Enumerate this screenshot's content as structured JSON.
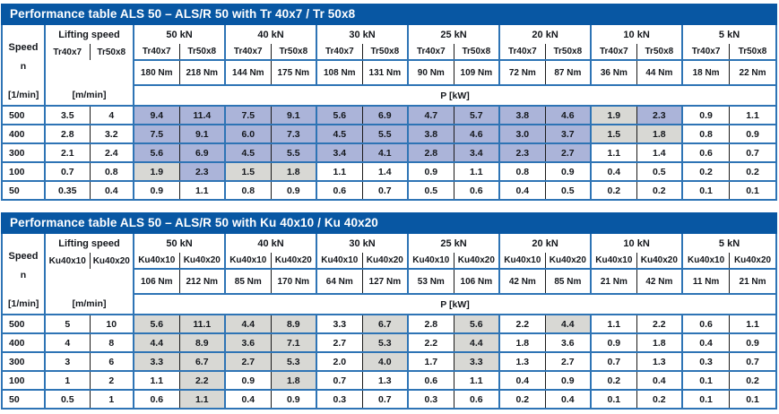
{
  "colors": {
    "title_bar": "#0857a3",
    "border_blue": "#2e74b5",
    "cell_blue": "#abb4d9",
    "cell_gray": "#d8d8d4",
    "text": "#14171c",
    "title_text": "#ffffff"
  },
  "tables": [
    {
      "title": "Performance table ALS 50 – ALS/R 50 with Tr 40x7 / Tr 50x8",
      "speed_header": "Speed",
      "speed_sub": "n",
      "speed_unit": "[1/min]",
      "lifting_header": "Lifting speed",
      "lifting_unit": "[m/min]",
      "power_unit": "P [kW]",
      "screw_labels": [
        "Tr40x7",
        "Tr50x8"
      ],
      "load_groups": [
        {
          "label": "50 kN",
          "torques": [
            "180 Nm",
            "218 Nm"
          ]
        },
        {
          "label": "40 kN",
          "torques": [
            "144 Nm",
            "175 Nm"
          ]
        },
        {
          "label": "30 kN",
          "torques": [
            "108 Nm",
            "131 Nm"
          ]
        },
        {
          "label": "25 kN",
          "torques": [
            "90 Nm",
            "109 Nm"
          ]
        },
        {
          "label": "20 kN",
          "torques": [
            "72 Nm",
            "87 Nm"
          ]
        },
        {
          "label": "10 kN",
          "torques": [
            "36 Nm",
            "44 Nm"
          ]
        },
        {
          "label": "5 kN",
          "torques": [
            "18 Nm",
            "22 Nm"
          ]
        }
      ],
      "rows": [
        {
          "speed": "500",
          "lifting": [
            "3.5",
            "4"
          ],
          "values": [
            [
              "9.4",
              "11.4"
            ],
            [
              "7.5",
              "9.1"
            ],
            [
              "5.6",
              "6.9"
            ],
            [
              "4.7",
              "5.7"
            ],
            [
              "3.8",
              "4.6"
            ],
            [
              "1.9",
              "2.3"
            ],
            [
              "0.9",
              "1.1"
            ]
          ],
          "shading": [
            [
              "blue",
              "blue"
            ],
            [
              "blue",
              "blue"
            ],
            [
              "blue",
              "blue"
            ],
            [
              "blue",
              "blue"
            ],
            [
              "blue",
              "blue"
            ],
            [
              "gray",
              "blue"
            ],
            [
              "",
              ""
            ]
          ]
        },
        {
          "speed": "400",
          "lifting": [
            "2.8",
            "3.2"
          ],
          "values": [
            [
              "7.5",
              "9.1"
            ],
            [
              "6.0",
              "7.3"
            ],
            [
              "4.5",
              "5.5"
            ],
            [
              "3.8",
              "4.6"
            ],
            [
              "3.0",
              "3.7"
            ],
            [
              "1.5",
              "1.8"
            ],
            [
              "0.8",
              "0.9"
            ]
          ],
          "shading": [
            [
              "blue",
              "blue"
            ],
            [
              "blue",
              "blue"
            ],
            [
              "blue",
              "blue"
            ],
            [
              "blue",
              "blue"
            ],
            [
              "blue",
              "blue"
            ],
            [
              "gray",
              "gray"
            ],
            [
              "",
              ""
            ]
          ]
        },
        {
          "speed": "300",
          "lifting": [
            "2.1",
            "2.4"
          ],
          "values": [
            [
              "5.6",
              "6.9"
            ],
            [
              "4.5",
              "5.5"
            ],
            [
              "3.4",
              "4.1"
            ],
            [
              "2.8",
              "3.4"
            ],
            [
              "2.3",
              "2.7"
            ],
            [
              "1.1",
              "1.4"
            ],
            [
              "0.6",
              "0.7"
            ]
          ],
          "shading": [
            [
              "blue",
              "blue"
            ],
            [
              "blue",
              "blue"
            ],
            [
              "blue",
              "blue"
            ],
            [
              "blue",
              "blue"
            ],
            [
              "blue",
              "blue"
            ],
            [
              "",
              ""
            ],
            [
              "",
              ""
            ]
          ]
        },
        {
          "speed": "100",
          "lifting": [
            "0.7",
            "0.8"
          ],
          "values": [
            [
              "1.9",
              "2.3"
            ],
            [
              "1.5",
              "1.8"
            ],
            [
              "1.1",
              "1.4"
            ],
            [
              "0.9",
              "1.1"
            ],
            [
              "0.8",
              "0.9"
            ],
            [
              "0.4",
              "0.5"
            ],
            [
              "0.2",
              "0.2"
            ]
          ],
          "shading": [
            [
              "gray",
              "blue"
            ],
            [
              "gray",
              "gray"
            ],
            [
              "",
              ""
            ],
            [
              "",
              ""
            ],
            [
              "",
              ""
            ],
            [
              "",
              ""
            ],
            [
              "",
              ""
            ]
          ]
        },
        {
          "speed": "50",
          "lifting": [
            "0.35",
            "0.4"
          ],
          "values": [
            [
              "0.9",
              "1.1"
            ],
            [
              "0.8",
              "0.9"
            ],
            [
              "0.6",
              "0.7"
            ],
            [
              "0.5",
              "0.6"
            ],
            [
              "0.4",
              "0.5"
            ],
            [
              "0.2",
              "0.2"
            ],
            [
              "0.1",
              "0.1"
            ]
          ],
          "shading": [
            [
              "",
              ""
            ],
            [
              "",
              ""
            ],
            [
              "",
              ""
            ],
            [
              "",
              ""
            ],
            [
              "",
              ""
            ],
            [
              "",
              ""
            ],
            [
              "",
              ""
            ]
          ]
        }
      ]
    },
    {
      "title": "Performance table ALS 50 – ALS/R 50 with Ku 40x10 / Ku 40x20",
      "speed_header": "Speed",
      "speed_sub": "n",
      "speed_unit": "[1/min]",
      "lifting_header": "Lifting speed",
      "lifting_unit": "[m/min]",
      "power_unit": "P [kW]",
      "screw_labels": [
        "Ku40x10",
        "Ku40x20"
      ],
      "load_groups": [
        {
          "label": "50 kN",
          "torques": [
            "106 Nm",
            "212 Nm"
          ]
        },
        {
          "label": "40 kN",
          "torques": [
            "85 Nm",
            "170 Nm"
          ]
        },
        {
          "label": "30 kN",
          "torques": [
            "64 Nm",
            "127 Nm"
          ]
        },
        {
          "label": "25 kN",
          "torques": [
            "53 Nm",
            "106 Nm"
          ]
        },
        {
          "label": "20 kN",
          "torques": [
            "42 Nm",
            "85 Nm"
          ]
        },
        {
          "label": "10 kN",
          "torques": [
            "21 Nm",
            "42 Nm"
          ]
        },
        {
          "label": "5 kN",
          "torques": [
            "11 Nm",
            "21 Nm"
          ]
        }
      ],
      "rows": [
        {
          "speed": "500",
          "lifting": [
            "5",
            "10"
          ],
          "values": [
            [
              "5.6",
              "11.1"
            ],
            [
              "4.4",
              "8.9"
            ],
            [
              "3.3",
              "6.7"
            ],
            [
              "2.8",
              "5.6"
            ],
            [
              "2.2",
              "4.4"
            ],
            [
              "1.1",
              "2.2"
            ],
            [
              "0.6",
              "1.1"
            ]
          ],
          "shading": [
            [
              "gray",
              "gray"
            ],
            [
              "gray",
              "gray"
            ],
            [
              "",
              "gray"
            ],
            [
              "",
              "gray"
            ],
            [
              "",
              "gray"
            ],
            [
              "",
              ""
            ],
            [
              "",
              ""
            ]
          ]
        },
        {
          "speed": "400",
          "lifting": [
            "4",
            "8"
          ],
          "values": [
            [
              "4.4",
              "8.9"
            ],
            [
              "3.6",
              "7.1"
            ],
            [
              "2.7",
              "5.3"
            ],
            [
              "2.2",
              "4.4"
            ],
            [
              "1.8",
              "3.6"
            ],
            [
              "0.9",
              "1.8"
            ],
            [
              "0.4",
              "0.9"
            ]
          ],
          "shading": [
            [
              "gray",
              "gray"
            ],
            [
              "gray",
              "gray"
            ],
            [
              "",
              "gray"
            ],
            [
              "",
              "gray"
            ],
            [
              "",
              ""
            ],
            [
              "",
              ""
            ],
            [
              "",
              ""
            ]
          ]
        },
        {
          "speed": "300",
          "lifting": [
            "3",
            "6"
          ],
          "values": [
            [
              "3.3",
              "6.7"
            ],
            [
              "2.7",
              "5.3"
            ],
            [
              "2.0",
              "4.0"
            ],
            [
              "1.7",
              "3.3"
            ],
            [
              "1.3",
              "2.7"
            ],
            [
              "0.7",
              "1.3"
            ],
            [
              "0.3",
              "0.7"
            ]
          ],
          "shading": [
            [
              "gray",
              "gray"
            ],
            [
              "gray",
              "gray"
            ],
            [
              "",
              "gray"
            ],
            [
              "",
              "gray"
            ],
            [
              "",
              ""
            ],
            [
              "",
              ""
            ],
            [
              "",
              ""
            ]
          ]
        },
        {
          "speed": "100",
          "lifting": [
            "1",
            "2"
          ],
          "values": [
            [
              "1.1",
              "2.2"
            ],
            [
              "0.9",
              "1.8"
            ],
            [
              "0.7",
              "1.3"
            ],
            [
              "0.6",
              "1.1"
            ],
            [
              "0.4",
              "0.9"
            ],
            [
              "0.2",
              "0.4"
            ],
            [
              "0.1",
              "0.2"
            ]
          ],
          "shading": [
            [
              "",
              "gray"
            ],
            [
              "",
              "gray"
            ],
            [
              "",
              ""
            ],
            [
              "",
              ""
            ],
            [
              "",
              ""
            ],
            [
              "",
              ""
            ],
            [
              "",
              ""
            ]
          ]
        },
        {
          "speed": "50",
          "lifting": [
            "0.5",
            "1"
          ],
          "values": [
            [
              "0.6",
              "1.1"
            ],
            [
              "0.4",
              "0.9"
            ],
            [
              "0.3",
              "0.7"
            ],
            [
              "0.3",
              "0.6"
            ],
            [
              "0.2",
              "0.4"
            ],
            [
              "0.1",
              "0.2"
            ],
            [
              "0.1",
              "0.1"
            ]
          ],
          "shading": [
            [
              "",
              "gray"
            ],
            [
              "",
              ""
            ],
            [
              "",
              ""
            ],
            [
              "",
              ""
            ],
            [
              "",
              ""
            ],
            [
              "",
              ""
            ],
            [
              "",
              ""
            ]
          ]
        }
      ]
    }
  ]
}
